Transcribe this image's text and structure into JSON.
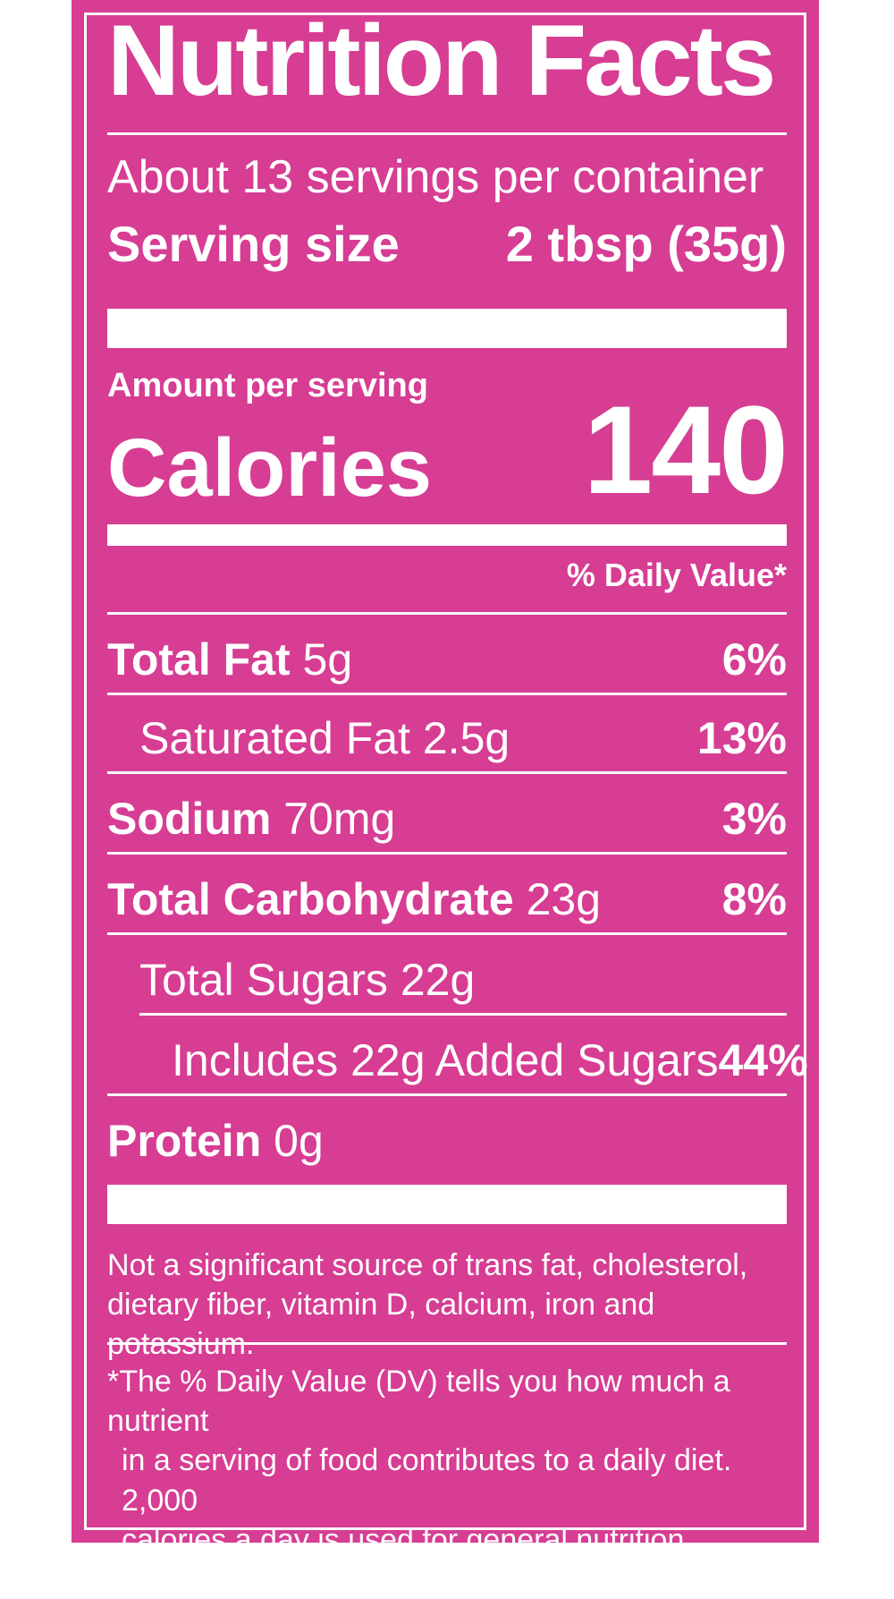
{
  "colors": {
    "panel": "#d63d93",
    "text": "#ffffff"
  },
  "label": {
    "title": "Nutrition Facts",
    "servings_per_container": "About 13 servings per container",
    "serving_size_label": "Serving size",
    "serving_size_value": "2 tbsp (35g)",
    "amount_per_serving": "Amount per serving",
    "calories_label": "Calories",
    "calories_value": "140",
    "daily_value_header": "% Daily Value*",
    "nutrients": [
      {
        "name": "Total Fat",
        "amount": "5g",
        "dv": "6%"
      },
      {
        "name": "Saturated Fat",
        "amount": "2.5g",
        "dv": "13%"
      },
      {
        "name": "Sodium",
        "amount": "70mg",
        "dv": "3%"
      },
      {
        "name": "Total Carbohydrate",
        "amount": "23g",
        "dv": "8%"
      },
      {
        "name": "Total Sugars",
        "amount": "22g",
        "dv": ""
      },
      {
        "name": "Includes 22g Added Sugars",
        "amount": "",
        "dv": "44%"
      },
      {
        "name": "Protein",
        "amount": "0g",
        "dv": ""
      }
    ],
    "not_significant_line1": "Not a significant source of trans fat, cholesterol,",
    "not_significant_line2": "dietary fiber, vitamin D, calcium, iron and potassium.",
    "footnote_line1": "*The % Daily Value (DV) tells you how much a nutrient",
    "footnote_line2": "in a serving of food contributes to a daily diet. 2,000",
    "footnote_line3": "calories a day is used for general nutrition advice."
  }
}
